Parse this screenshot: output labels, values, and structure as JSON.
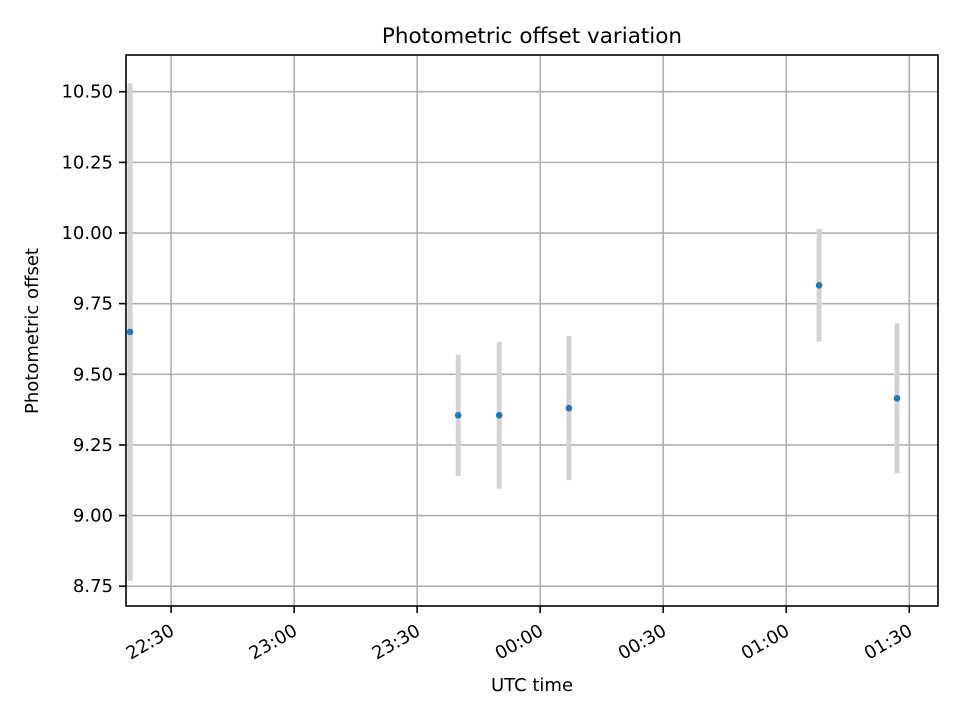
{
  "chart_data": {
    "type": "scatter",
    "title": "Photometric offset variation",
    "xlabel": "UTC time",
    "ylabel": "Photometric offset",
    "x_ticks": [
      "22:30",
      "23:00",
      "23:30",
      "00:00",
      "00:30",
      "01:00",
      "01:30"
    ],
    "y_ticks": [
      "8.75",
      "9.00",
      "9.25",
      "9.50",
      "9.75",
      "10.00",
      "10.25",
      "10.50"
    ],
    "xlim": [
      "22:19",
      "01:37"
    ],
    "ylim": [
      8.68,
      10.63
    ],
    "grid": true,
    "series": [
      {
        "points": [
          {
            "x": "22:20",
            "y": 9.65,
            "ymin": 8.77,
            "ymax": 10.53
          },
          {
            "x": "23:40",
            "y": 9.355,
            "ymin": 9.14,
            "ymax": 9.57
          },
          {
            "x": "23:50",
            "y": 9.355,
            "ymin": 9.095,
            "ymax": 9.615
          },
          {
            "x": "00:07",
            "y": 9.38,
            "ymin": 9.125,
            "ymax": 9.635
          },
          {
            "x": "01:08",
            "y": 9.815,
            "ymin": 9.615,
            "ymax": 10.015
          },
          {
            "x": "01:27",
            "y": 9.415,
            "ymin": 9.15,
            "ymax": 9.68
          }
        ]
      }
    ],
    "colors": {
      "marker": "#1f77b4",
      "errorbar": "#d3d3d3",
      "grid": "#b0b0b0"
    }
  }
}
